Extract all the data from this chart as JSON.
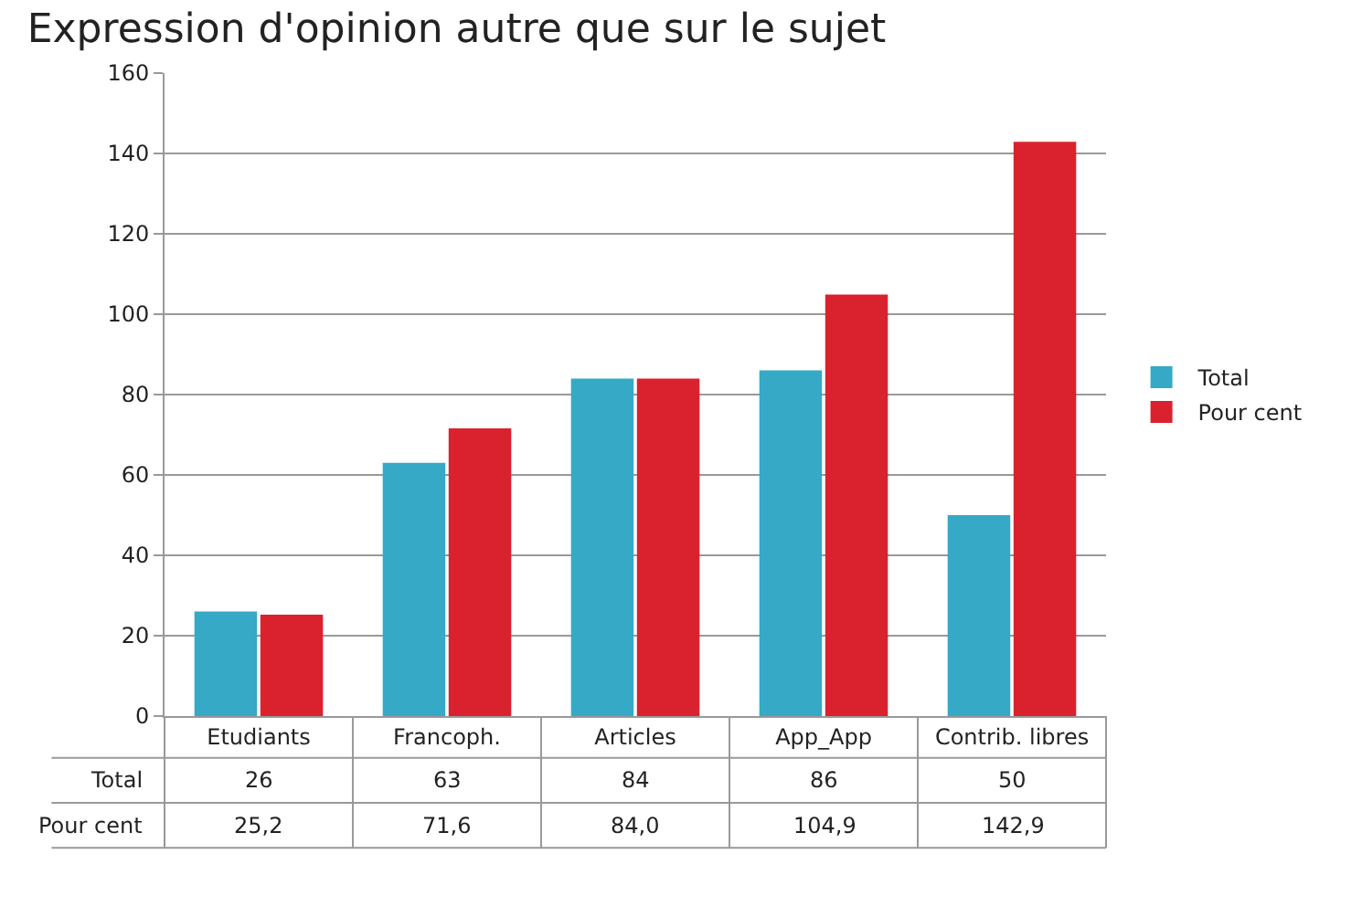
{
  "chart_data": {
    "type": "bar",
    "title": "Expression d'opinion autre que sur le sujet",
    "categories": [
      "Etudiants",
      "Francoph.",
      "Articles",
      "App_App",
      "Contrib. libres"
    ],
    "series": [
      {
        "name": "Total",
        "color": "#35a9c6",
        "values": [
          26,
          63,
          84,
          86,
          50
        ],
        "value_labels": [
          "26",
          "63",
          "84",
          "86",
          "50"
        ]
      },
      {
        "name": "Pour cent",
        "color": "#d9222e",
        "values": [
          25.2,
          71.6,
          84.0,
          104.9,
          142.9
        ],
        "value_labels": [
          "25,2",
          "71,6",
          "84,0",
          "104,9",
          "142,9"
        ]
      }
    ],
    "ylim": [
      0,
      160
    ],
    "yticks": [
      0,
      20,
      40,
      60,
      80,
      100,
      120,
      140,
      160
    ],
    "grid": "y",
    "legend": "right"
  }
}
